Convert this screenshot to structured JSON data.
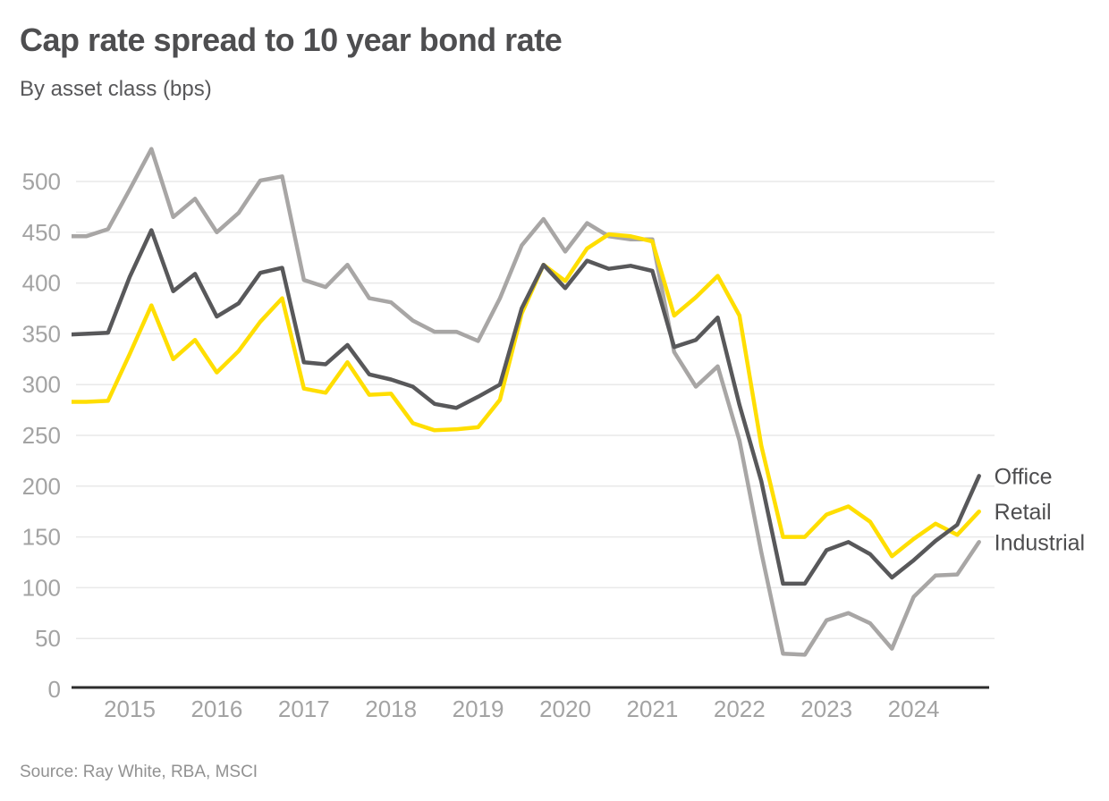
{
  "header": {
    "title": "Cap rate spread to 10 year bond rate",
    "subtitle": "By asset class (bps)"
  },
  "footer": {
    "source": "Source: Ray White, RBA, MSCI"
  },
  "chart_data": {
    "type": "line",
    "title": "Cap rate spread to 10 year bond rate",
    "subtitle": "By asset class (bps)",
    "unit": "bps",
    "x_frequency": "quarterly",
    "x_start": "2014-Q2",
    "x_end": "2024-Q4",
    "x_tick_labels": [
      "2015",
      "2016",
      "2017",
      "2018",
      "2019",
      "2020",
      "2021",
      "2022",
      "2023",
      "2024"
    ],
    "y_ticks": [
      0,
      50,
      100,
      150,
      200,
      250,
      300,
      350,
      400,
      450,
      500
    ],
    "ylim": [
      0,
      540
    ],
    "grid": true,
    "legend_position": "right-line-end",
    "colors": {
      "office": "#58585a",
      "retail": "#ffde00",
      "industrial": "#a8a6a5",
      "axis": "#2d2d2d",
      "gridline": "#e9e9e9",
      "tick_text": "#a3a3a3",
      "legend_text": "#4d4d4f"
    },
    "series": [
      {
        "name": "Office",
        "color": "#58585a",
        "values": [
          349,
          350,
          351,
          406,
          452,
          392,
          409,
          367,
          380,
          410,
          415,
          322,
          320,
          339,
          310,
          305,
          298,
          281,
          277,
          288,
          300,
          375,
          418,
          395,
          422,
          414,
          417,
          412,
          337,
          344,
          366,
          280,
          205,
          104,
          104,
          137,
          145,
          133,
          110,
          127,
          146,
          162,
          210
        ]
      },
      {
        "name": "Retail",
        "color": "#ffde00",
        "values": [
          283,
          283,
          284,
          330,
          378,
          325,
          344,
          312,
          333,
          362,
          385,
          296,
          292,
          322,
          290,
          291,
          262,
          255,
          256,
          258,
          285,
          370,
          418,
          402,
          434,
          448,
          446,
          441,
          368,
          386,
          407,
          368,
          240,
          150,
          150,
          172,
          180,
          165,
          131,
          148,
          163,
          152,
          175
        ]
      },
      {
        "name": "Industrial",
        "color": "#a8a6a5",
        "values": [
          446,
          446,
          453,
          492,
          532,
          465,
          483,
          450,
          469,
          501,
          505,
          403,
          396,
          418,
          385,
          381,
          363,
          352,
          352,
          343,
          385,
          437,
          463,
          431,
          459,
          446,
          443,
          443,
          332,
          298,
          318,
          245,
          135,
          35,
          34,
          68,
          75,
          65,
          40,
          91,
          112,
          113,
          145
        ]
      }
    ]
  }
}
